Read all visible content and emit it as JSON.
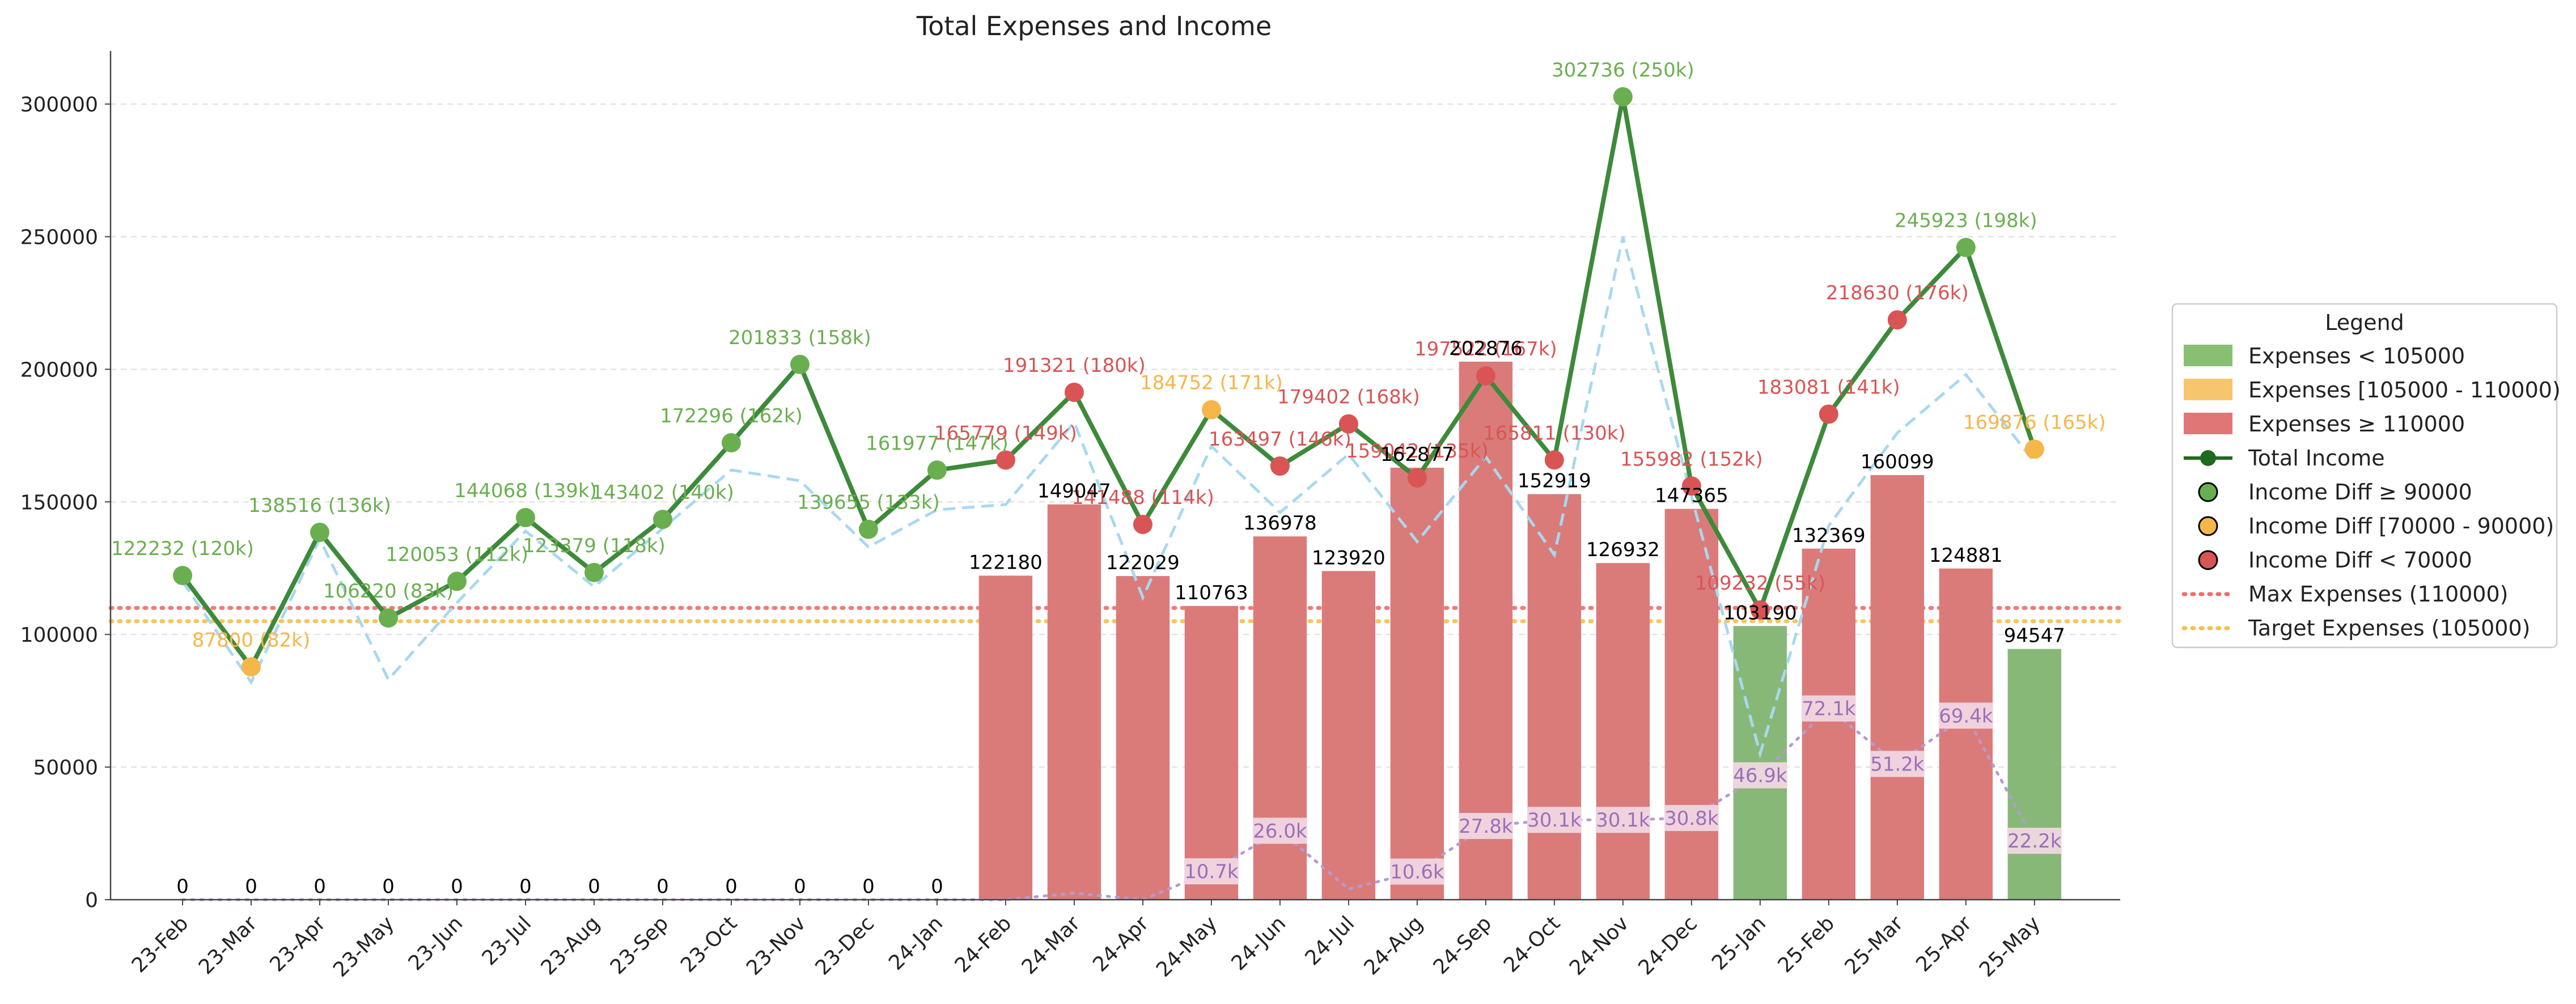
{
  "chart_data": {
    "type": "bar",
    "title": "Total Expenses and Income",
    "xlabel": "",
    "ylabel": "",
    "ylim": [
      0,
      320000
    ],
    "y_ticks": [
      0,
      50000,
      100000,
      150000,
      200000,
      250000,
      300000
    ],
    "grid": "horizontal dashed",
    "legend_position": "right",
    "categories": [
      "23-Feb",
      "23-Mar",
      "23-Apr",
      "23-May",
      "23-Jun",
      "23-Jul",
      "23-Aug",
      "23-Sep",
      "23-Oct",
      "23-Nov",
      "23-Dec",
      "24-Jan",
      "24-Feb",
      "24-Mar",
      "24-Apr",
      "24-May",
      "24-Jun",
      "24-Jul",
      "24-Aug",
      "24-Sep",
      "24-Oct",
      "24-Nov",
      "24-Dec",
      "25-Jan",
      "25-Feb",
      "25-Mar",
      "25-Apr",
      "25-May"
    ],
    "expenses": [
      0,
      0,
      0,
      0,
      0,
      0,
      0,
      0,
      0,
      0,
      0,
      0,
      122180,
      149047,
      122029,
      110763,
      136978,
      123920,
      162877,
      202876,
      152919,
      126932,
      147365,
      103190,
      132369,
      160099,
      124881,
      94547
    ],
    "expense_labels": [
      "0",
      "0",
      "0",
      "0",
      "0",
      "0",
      "0",
      "0",
      "0",
      "0",
      "0",
      "0",
      "122180",
      "149047",
      "122029",
      "110763",
      "136978",
      "123920",
      "162877",
      "202876",
      "152919",
      "126932",
      "147365",
      "103190",
      "132369",
      "160099",
      "124881",
      "94547"
    ],
    "income": [
      122232,
      87800,
      138516,
      106220,
      120053,
      144068,
      123379,
      143402,
      172296,
      201833,
      139655,
      161977,
      165779,
      191321,
      141488,
      184752,
      163497,
      179402,
      159042,
      197522,
      165811,
      302736,
      155982,
      109232,
      183081,
      218630,
      245923,
      169876
    ],
    "income_labels": [
      "122232 (120k)",
      "87800 (82k)",
      "138516 (136k)",
      "106220 (83k)",
      "120053 (112k)",
      "144068 (139k)",
      "123379 (118k)",
      "143402 (140k)",
      "172296 (162k)",
      "201833 (158k)",
      "139655 (133k)",
      "161977 (147k)",
      "165779 (149k)",
      "191321 (180k)",
      "141488 (114k)",
      "184752 (171k)",
      "163497 (146k)",
      "179402 (168k)",
      "159042 (135k)",
      "197522 (167k)",
      "165811 (130k)",
      "302736 (250k)",
      "155982 (152k)",
      "109232 (55k)",
      "183081 (141k)",
      "218630 (176k)",
      "245923 (198k)",
      "169876 (165k)"
    ],
    "income_diff_reference": [
      120000,
      82000,
      136000,
      83000,
      112000,
      139000,
      118000,
      140000,
      162000,
      158000,
      133000,
      147000,
      149000,
      180000,
      114000,
      171000,
      146000,
      168000,
      135000,
      167000,
      130000,
      250000,
      152000,
      55000,
      141000,
      176000,
      198000,
      165000
    ],
    "inner_values": [
      null,
      null,
      null,
      null,
      null,
      null,
      null,
      null,
      null,
      null,
      null,
      null,
      null,
      null,
      null,
      10700,
      26000,
      null,
      10600,
      27800,
      30100,
      30100,
      30800,
      46900,
      72100,
      51200,
      69400,
      22200
    ],
    "inner_labels": [
      "",
      "",
      "",
      "",
      "",
      "",
      "",
      "",
      "",
      "",
      "",
      "",
      "",
      "",
      "",
      "10.7k",
      "26.0k",
      "",
      "10.6k",
      "27.8k",
      "30.1k",
      "30.1k",
      "30.8k",
      "46.9k",
      "72.1k",
      "51.2k",
      "69.4k",
      "22.2k"
    ],
    "inner_line": [
      0,
      0,
      0,
      0,
      0,
      0,
      0,
      0,
      0,
      0,
      0,
      0,
      0,
      2500,
      0,
      10700,
      26000,
      4000,
      10600,
      27800,
      30100,
      30100,
      30800,
      46900,
      72100,
      51200,
      69400,
      22200
    ],
    "max_expenses": 110000,
    "target_expenses": 105000,
    "legend": {
      "title": "Legend",
      "items": [
        "Expenses < 105000",
        "Expenses [105000 - 110000)",
        "Expenses ≥ 110000",
        "Total Income",
        "Income Diff ≥ 90000",
        "Income Diff [70000 - 90000)",
        "Income Diff < 70000",
        "Max Expenses (110000)",
        "Target Expenses (105000)"
      ]
    },
    "colors": {
      "green": "#6aaf4f",
      "orange": "#f5b64a",
      "red": "#d95455",
      "bar_green": "#87b878",
      "bar_red": "#da7b7a",
      "income_line": "#3c8a3a",
      "reference_line": "#a8d8f0",
      "inner_line": "#b79ad0",
      "inner_label": "#9b6fb8",
      "max_line": "#f06c6c",
      "target_line": "#f5c04a"
    }
  }
}
